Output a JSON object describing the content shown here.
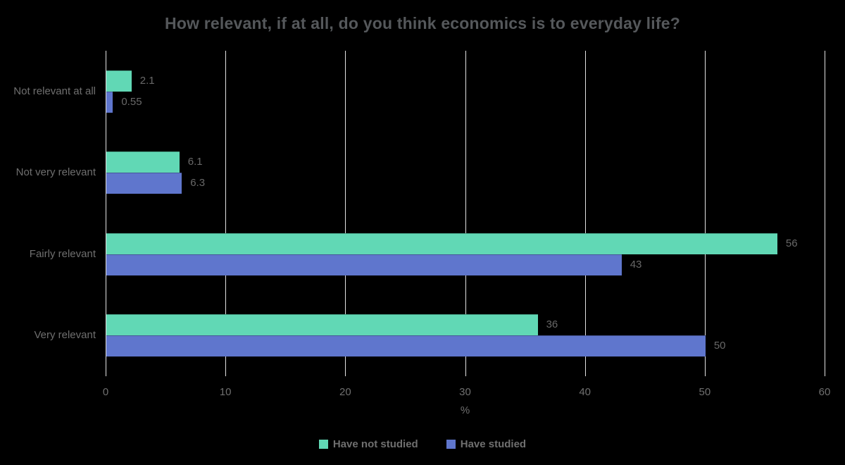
{
  "chart_data": {
    "type": "bar",
    "orientation": "horizontal",
    "title": "How relevant, if at all, do you think economics is to everyday life?",
    "categories": [
      "Not relevant at all",
      "Not very relevant",
      "Fairly relevant",
      "Very relevant"
    ],
    "series": [
      {
        "name": "Have not studied",
        "color": "#61d8b5",
        "values": [
          2.1,
          6.1,
          56,
          36
        ],
        "labels": [
          "2.1",
          "6.1",
          "56",
          "36"
        ]
      },
      {
        "name": "Have studied",
        "color": "#5f76cd",
        "values": [
          0.55,
          6.3,
          43,
          50
        ],
        "labels": [
          "0.55",
          "6.3",
          "43",
          "50"
        ]
      }
    ],
    "xlabel": "%",
    "x_ticks": [
      "0",
      "10",
      "20",
      "30",
      "40",
      "50",
      "60"
    ],
    "xlim": [
      0,
      60
    ],
    "grid": "vertical-gridlines-on",
    "legend_position": "bottom-center"
  },
  "colors": {
    "background": "#000000",
    "title_text": "#55585b",
    "label_text": "#6f6f6f",
    "value_text": "#686868",
    "gridline": "#e2e2e2"
  }
}
